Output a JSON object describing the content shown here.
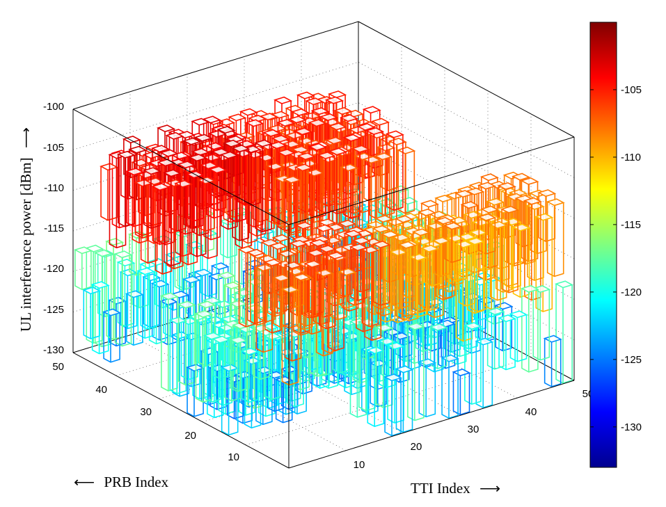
{
  "chart_data": {
    "type": "bar3d",
    "zlabel": "UL interference power [dBm]",
    "zlabel_arrow": "⟶",
    "xlabel": "TTI Index",
    "xlabel_arrow": "⟶",
    "ylabel": "PRB Index",
    "ylabel_arrow": "⟵",
    "zlim": [
      -130,
      -100
    ],
    "xlim": [
      0,
      50
    ],
    "ylim": [
      0,
      50
    ],
    "z_ticks": [
      "-100",
      "-105",
      "-110",
      "-115",
      "-120",
      "-125",
      "-130"
    ],
    "x_ticks": [
      "10",
      "20",
      "30",
      "40",
      "50"
    ],
    "y_ticks": [
      "10",
      "20",
      "30",
      "40",
      "50"
    ],
    "colorbar": {
      "colormap": "jet",
      "range": [
        -133,
        -100
      ],
      "ticks": [
        "-105",
        "-110",
        "-115",
        "-120",
        "-125",
        "-130"
      ]
    },
    "grid": true,
    "regions": [
      {
        "tti": [
          1,
          20
        ],
        "prb": [
          30,
          43
        ],
        "level": -104
      },
      {
        "tti": [
          1,
          18
        ],
        "prb": [
          1,
          12
        ],
        "level": -107
      },
      {
        "tti": [
          21,
          42
        ],
        "prb": [
          26,
          46
        ],
        "level": -106
      },
      {
        "tti": [
          22,
          50
        ],
        "prb": [
          2,
          14
        ],
        "level": -109
      }
    ],
    "background_level": -121
  }
}
